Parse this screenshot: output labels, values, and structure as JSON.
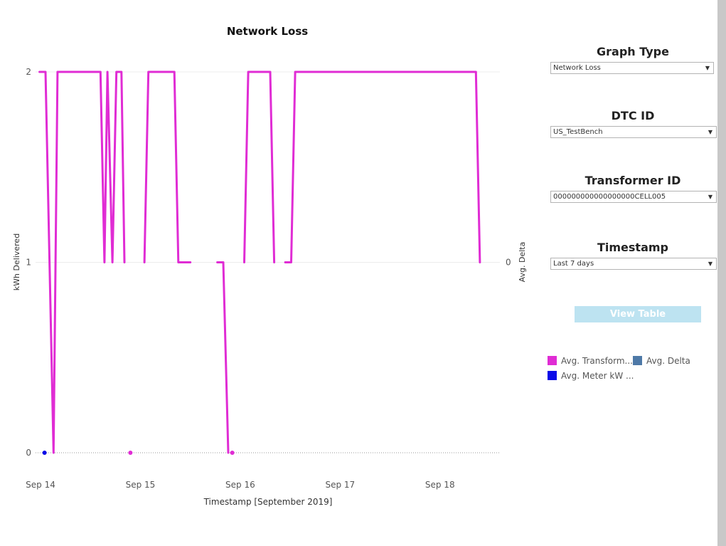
{
  "chart_data": {
    "type": "line",
    "title": "Network Loss",
    "xlabel": "Timestamp [September 2019]",
    "ylabel": "kWh Delivered",
    "y2label": "Avg. Delta",
    "ylim": [
      0,
      2
    ],
    "yticks": [
      "0",
      "1",
      "2"
    ],
    "y2ticks": [
      "0"
    ],
    "xlim": [
      13.95,
      18.6
    ],
    "xticks": [
      {
        "label": "Sep 14",
        "value": 14
      },
      {
        "label": "Sep 15",
        "value": 15
      },
      {
        "label": "Sep 16",
        "value": 16
      },
      {
        "label": "Sep 17",
        "value": 17
      },
      {
        "label": "Sep 18",
        "value": 18
      }
    ],
    "grid": true,
    "series": [
      {
        "name": "Avg. Transform...",
        "color": "#e02cd4",
        "segments": [
          [
            [
              13.99,
              2
            ],
            [
              14.05,
              2
            ],
            [
              14.13,
              0
            ],
            [
              14.17,
              2
            ],
            [
              14.6,
              2
            ],
            [
              14.64,
              1
            ],
            [
              14.67,
              2
            ],
            [
              14.72,
              1
            ],
            [
              14.76,
              2
            ],
            [
              14.81,
              2
            ],
            [
              14.84,
              1
            ]
          ],
          [
            [
              15.04,
              1
            ],
            [
              15.08,
              2
            ],
            [
              15.34,
              2
            ],
            [
              15.38,
              1
            ],
            [
              15.5,
              1
            ]
          ],
          [
            [
              15.77,
              1
            ],
            [
              15.83,
              1
            ],
            [
              15.88,
              0
            ]
          ],
          [
            [
              16.04,
              1
            ],
            [
              16.08,
              2
            ],
            [
              16.3,
              2
            ],
            [
              16.34,
              1
            ]
          ],
          [
            [
              16.45,
              1
            ],
            [
              16.51,
              1
            ],
            [
              16.55,
              2
            ],
            [
              18.36,
              2
            ],
            [
              18.4,
              1
            ]
          ]
        ],
        "points": [
          [
            14.9,
            0
          ],
          [
            15.92,
            0
          ]
        ]
      },
      {
        "name": "Avg. Meter kW ...",
        "color": "#0a0ae8",
        "segments": [],
        "points": [
          [
            14.04,
            0
          ]
        ]
      },
      {
        "name": "Avg. Delta",
        "color": "#4e79a7",
        "segments": [],
        "points": []
      }
    ]
  },
  "controls": {
    "graph_type": {
      "title": "Graph Type",
      "value": "Network Loss"
    },
    "dtc_id": {
      "title": "DTC ID",
      "value": "US_TestBench"
    },
    "transformer_id": {
      "title": "Transformer ID",
      "value": "000000000000000000CELL005"
    },
    "timestamp": {
      "title": "Timestamp",
      "value": "Last 7 days"
    },
    "view_table_label": "View Table",
    "caret": "▼"
  },
  "legend": [
    {
      "label": "Avg. Transform...",
      "color": "#e02cd4"
    },
    {
      "label": "Avg. Delta",
      "color": "#4e79a7"
    },
    {
      "label": "Avg. Meter kW ...",
      "color": "#0a0ae8"
    }
  ]
}
